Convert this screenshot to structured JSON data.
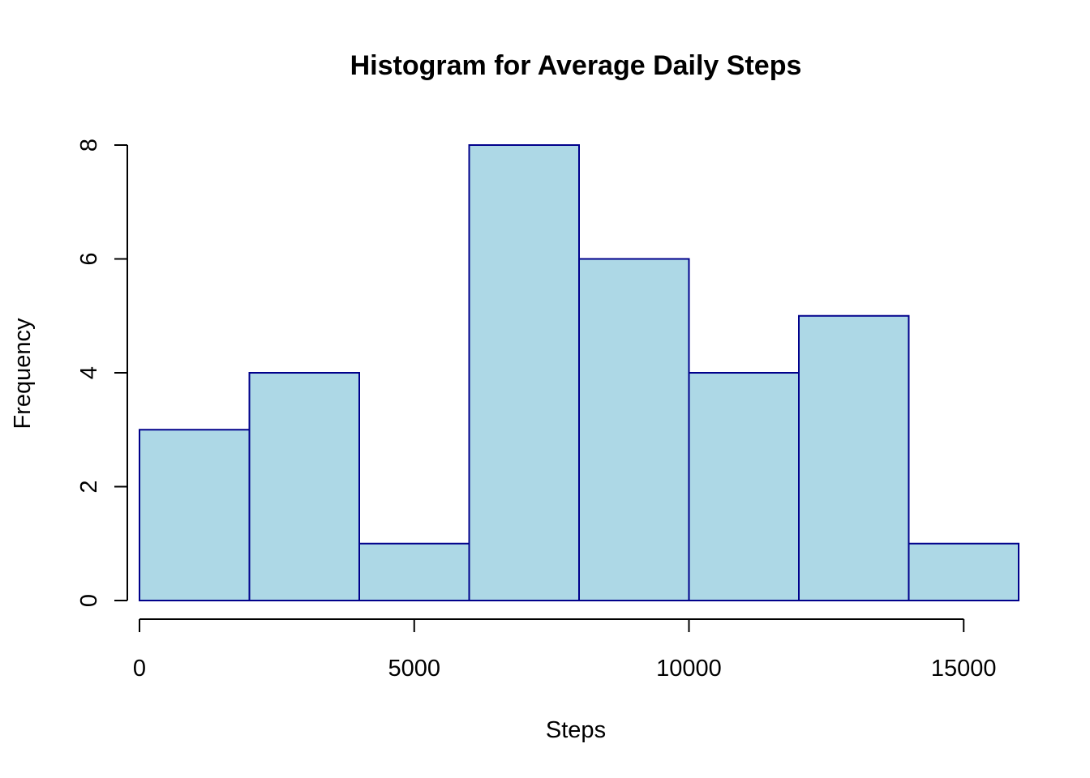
{
  "chart_data": {
    "type": "histogram",
    "title": "Histogram for Average Daily Steps",
    "xlabel": "Steps",
    "ylabel": "Frequency",
    "bin_edges": [
      0,
      2000,
      4000,
      6000,
      8000,
      10000,
      12000,
      14000,
      16000
    ],
    "values": [
      3,
      4,
      1,
      8,
      6,
      4,
      5,
      1
    ],
    "xlim": [
      0,
      16000
    ],
    "ylim": [
      0,
      8
    ],
    "x_ticks": [
      0,
      5000,
      10000,
      15000
    ],
    "y_ticks": [
      0,
      2,
      4,
      6,
      8
    ],
    "grid": false,
    "bar_fill": "#ADD8E6",
    "bar_stroke": "#00008B"
  }
}
